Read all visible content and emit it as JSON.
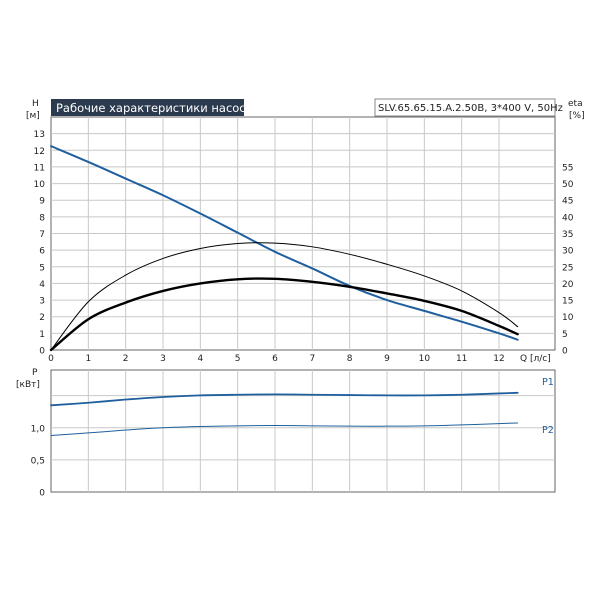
{
  "chart_data": [
    {
      "type": "line",
      "title": "Рабочие характеристики насоса",
      "model": "SLV.65.65.15.A.2.50B, 3*400 V, 50Hz",
      "xlabel": "Q [л/с]",
      "ylabel": "H [м]",
      "ylabel_top": "H",
      "ylabel_unit": "[м]",
      "y2label_top": "eta",
      "y2label_unit": "[%]",
      "xlim": [
        0,
        13.5
      ],
      "ylim": [
        0,
        14
      ],
      "y2lim": [
        0,
        70
      ],
      "xticks": [
        "0",
        "1",
        "2",
        "3",
        "4",
        "5",
        "6",
        "7",
        "8",
        "9",
        "10",
        "11",
        "12"
      ],
      "xtick_values": [
        0,
        1,
        2,
        3,
        4,
        5,
        6,
        7,
        8,
        9,
        10,
        11,
        12
      ],
      "yticks": [
        "0",
        "1",
        "2",
        "3",
        "4",
        "5",
        "6",
        "7",
        "8",
        "9",
        "10",
        "11",
        "12",
        "13"
      ],
      "ytick_values": [
        0,
        1,
        2,
        3,
        4,
        5,
        6,
        7,
        8,
        9,
        10,
        11,
        12,
        13
      ],
      "y2ticks": [
        "0",
        "5",
        "10",
        "15",
        "20",
        "25",
        "30",
        "35",
        "40",
        "45",
        "50",
        "55"
      ],
      "y2tick_values": [
        0,
        5,
        10,
        15,
        20,
        25,
        30,
        35,
        40,
        45,
        50,
        55
      ],
      "grid": true,
      "series": [
        {
          "role": "head",
          "axis": "left",
          "color": "#1f5f9e",
          "width": 2,
          "x": [
            0,
            1,
            2,
            3,
            4,
            5,
            6,
            7,
            8,
            9,
            10,
            11,
            12,
            12.5
          ],
          "y": [
            12.25,
            11.3,
            10.3,
            9.3,
            8.2,
            7.05,
            5.9,
            4.9,
            3.85,
            3.0,
            2.35,
            1.7,
            1.0,
            0.62
          ]
        },
        {
          "role": "efficiency_bold",
          "axis": "left",
          "color": "#000000",
          "width": 2.4,
          "x": [
            0,
            1,
            2,
            3,
            4,
            5,
            6,
            7,
            8,
            9,
            10,
            11,
            12,
            12.5
          ],
          "y": [
            0,
            1.85,
            2.85,
            3.55,
            4.0,
            4.25,
            4.28,
            4.1,
            3.8,
            3.4,
            2.95,
            2.35,
            1.45,
            0.95
          ]
        },
        {
          "role": "efficiency_thin",
          "axis": "left",
          "color": "#000000",
          "width": 1,
          "x": [
            0,
            1,
            2,
            3,
            4,
            5,
            6,
            7,
            8,
            9,
            10,
            11,
            12,
            12.5
          ],
          "y": [
            0,
            2.9,
            4.5,
            5.5,
            6.1,
            6.4,
            6.42,
            6.2,
            5.75,
            5.15,
            4.45,
            3.55,
            2.25,
            1.4
          ]
        }
      ]
    },
    {
      "type": "line",
      "ylabel_top": "P",
      "ylabel_unit": "[кВт]",
      "xlim": [
        0,
        13.5
      ],
      "ylim": [
        0,
        1.9
      ],
      "yticks": [
        "0",
        "0,5",
        "1,0"
      ],
      "ytick_values": [
        0,
        0.5,
        1.0
      ],
      "grid": true,
      "series": [
        {
          "name": "P1",
          "color": "#1f5f9e",
          "width": 1.8,
          "x": [
            0,
            1,
            2,
            3,
            4,
            5,
            6,
            7,
            8,
            9,
            10,
            11,
            12,
            12.5
          ],
          "y": [
            1.35,
            1.39,
            1.44,
            1.48,
            1.505,
            1.515,
            1.52,
            1.515,
            1.51,
            1.505,
            1.505,
            1.515,
            1.535,
            1.545
          ]
        },
        {
          "name": "P2",
          "color": "#1f5f9e",
          "width": 1,
          "x": [
            0,
            1,
            2,
            3,
            4,
            5,
            6,
            7,
            8,
            9,
            10,
            11,
            12,
            12.5
          ],
          "y": [
            0.88,
            0.92,
            0.965,
            1.0,
            1.02,
            1.03,
            1.035,
            1.03,
            1.025,
            1.025,
            1.03,
            1.045,
            1.065,
            1.075
          ]
        }
      ]
    }
  ]
}
